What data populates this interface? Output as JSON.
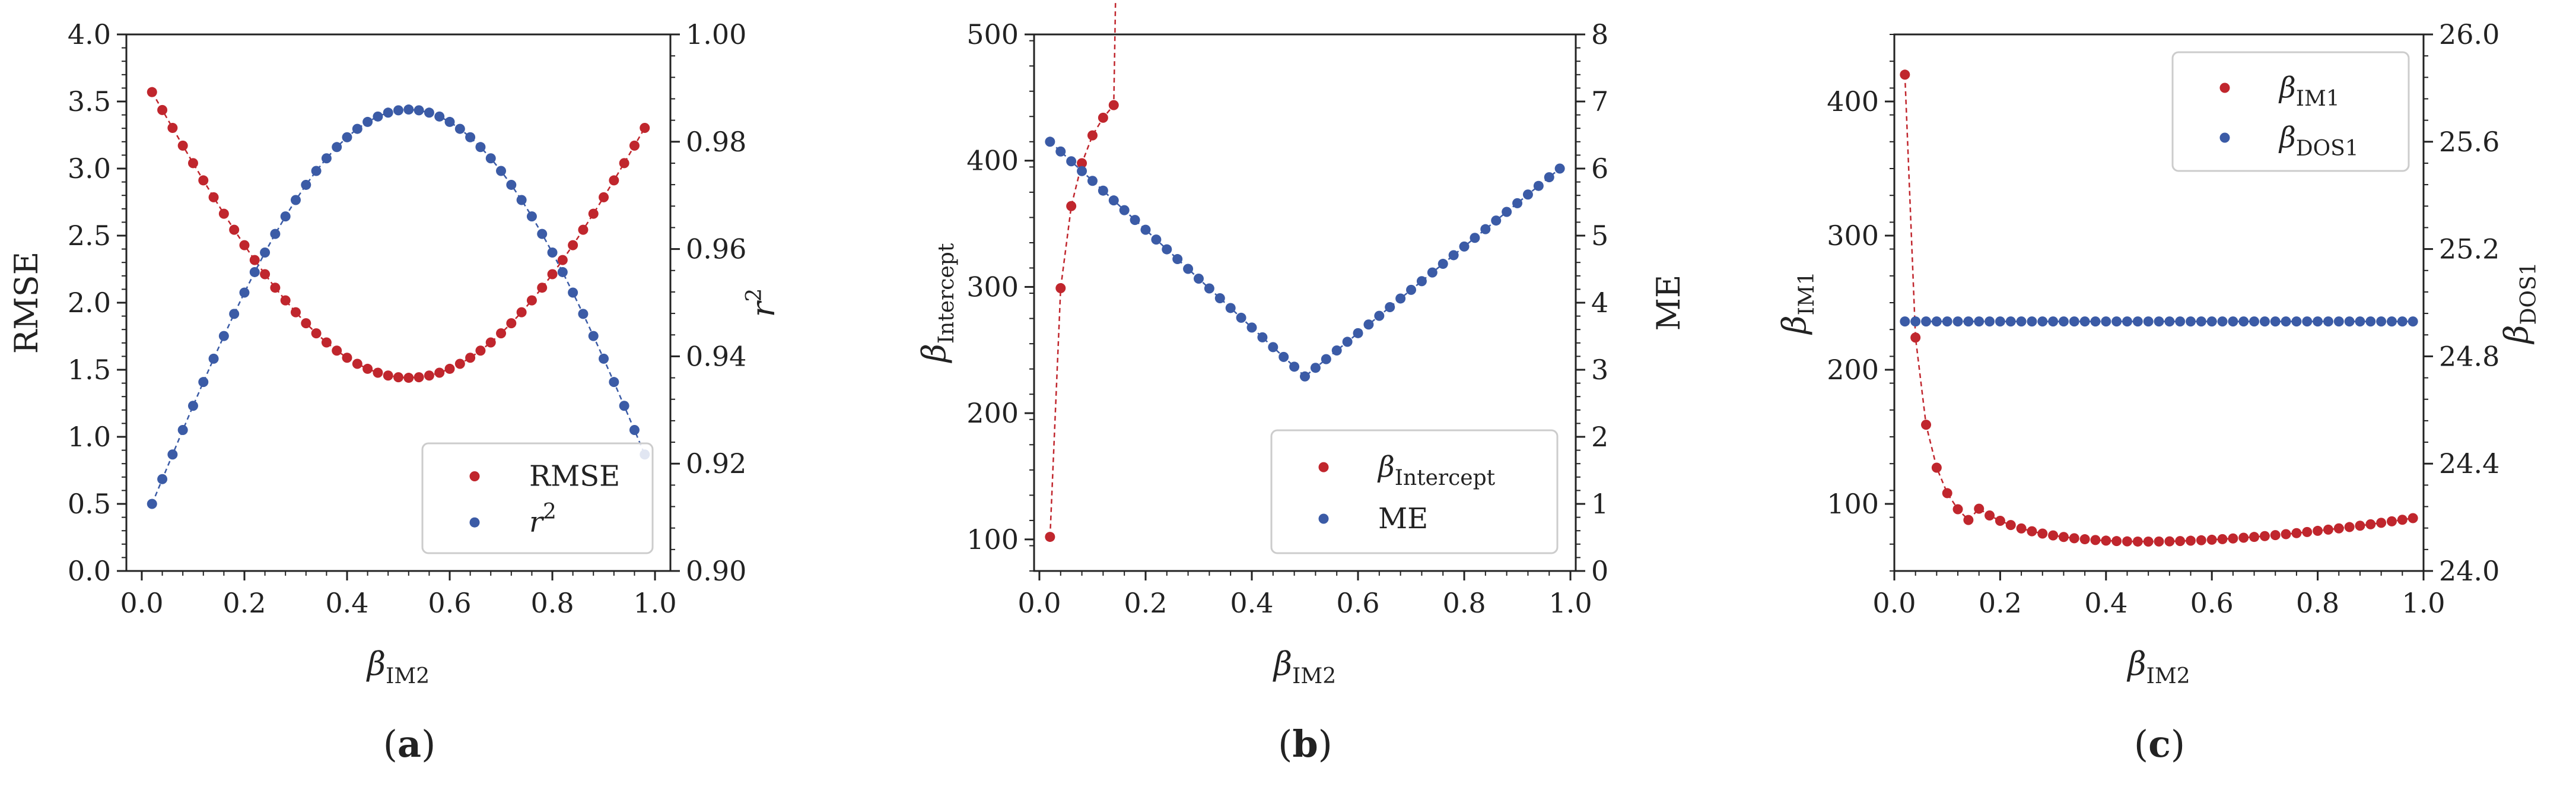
{
  "colors": {
    "red": "#c0262d",
    "blue": "#3b5ba6",
    "axis": "#222222",
    "legend_border": "#cccccc"
  },
  "chart_data": [
    {
      "type": "scatter",
      "panel_label": "a",
      "title": "",
      "xlabel": {
        "main": "β",
        "sub": "IM2"
      },
      "xlim": [
        -0.03,
        1.03
      ],
      "xticks": [
        0.0,
        0.2,
        0.4,
        0.6,
        0.8,
        1.0
      ],
      "xtick_labels": [
        "0.0",
        "0.2",
        "0.4",
        "0.6",
        "0.8",
        "1.0"
      ],
      "left_axis": {
        "label": {
          "main": "RMSE",
          "sub": ""
        },
        "ylim": [
          0.0,
          4.0
        ],
        "ticks": [
          0.0,
          0.5,
          1.0,
          1.5,
          2.0,
          2.5,
          3.0,
          3.5,
          4.0
        ],
        "tick_labels": [
          "0.0",
          "0.5",
          "1.0",
          "1.5",
          "2.0",
          "2.5",
          "3.0",
          "3.5",
          "4.0"
        ]
      },
      "right_axis": {
        "label": {
          "main": "r",
          "sup": "2"
        },
        "ylim": [
          0.9,
          1.0
        ],
        "ticks": [
          0.9,
          0.92,
          0.94,
          0.96,
          0.98,
          1.0
        ],
        "tick_labels": [
          "0.90",
          "0.92",
          "0.94",
          "0.96",
          "0.98",
          "1.00"
        ]
      },
      "legend": {
        "position": "lower-right",
        "entries": [
          {
            "label": "RMSE",
            "sup": "",
            "sub": "",
            "series": 0
          },
          {
            "label": "r",
            "sup": "2",
            "sub": "",
            "series": 1
          }
        ]
      },
      "series": [
        {
          "name": "RMSE",
          "axis": "left",
          "color": "red",
          "formula": {
            "kind": "cosine",
            "lo": 1.44,
            "hi": 3.57,
            "x0": 0.52,
            "x1": 0.02
          }
        },
        {
          "name": "r²",
          "axis": "right",
          "color": "blue",
          "formula": {
            "kind": "sine",
            "lo": 0.9125,
            "hi": 0.986,
            "x0": 0.52,
            "x1": 0.02
          }
        }
      ]
    },
    {
      "type": "scatter",
      "panel_label": "b",
      "title": "",
      "xlabel": {
        "main": "β",
        "sub": "IM2"
      },
      "xlim": [
        -0.01,
        1.01
      ],
      "xticks": [
        0.0,
        0.2,
        0.4,
        0.6,
        0.8,
        1.0
      ],
      "xtick_labels": [
        "0.0",
        "0.2",
        "0.4",
        "0.6",
        "0.8",
        "1.0"
      ],
      "left_axis": {
        "label": {
          "main": "β",
          "sub": "Intercept"
        },
        "ylim": [
          75,
          500
        ],
        "ticks": [
          100,
          200,
          300,
          400,
          500
        ],
        "tick_labels": [
          "100",
          "200",
          "300",
          "400",
          "500"
        ]
      },
      "right_axis": {
        "label": {
          "main": "ME",
          "sub": ""
        },
        "ylim": [
          0,
          8
        ],
        "ticks": [
          0,
          1,
          2,
          3,
          4,
          5,
          6,
          7,
          8
        ],
        "tick_labels": [
          "0",
          "1",
          "2",
          "3",
          "4",
          "5",
          "6",
          "7",
          "8"
        ]
      },
      "legend": {
        "position": "lower-right",
        "entries": [
          {
            "label": "β",
            "sup": "",
            "sub": "Intercept",
            "series": 0
          },
          {
            "label": "ME",
            "sup": "",
            "sub": "",
            "series": 1
          }
        ]
      },
      "series": [
        {
          "name": "β Intercept",
          "axis": "left",
          "color": "red",
          "values_at_start": [
            102,
            299,
            364,
            398,
            420,
            434,
            444
          ],
          "formula": {
            "kind": "saturating",
            "asymptote": 489.0,
            "scale": 3.8
          }
        },
        {
          "name": "ME",
          "axis": "right",
          "color": "blue",
          "formula": {
            "kind": "vee",
            "left_val": 6.4,
            "min_val": 2.9,
            "right_val": 6.0,
            "x_min": 0.5
          }
        }
      ]
    },
    {
      "type": "scatter",
      "panel_label": "c",
      "title": "",
      "xlabel": {
        "main": "β",
        "sub": "IM2"
      },
      "xlim": [
        0.0,
        1.0
      ],
      "xticks": [
        0.0,
        0.2,
        0.4,
        0.6,
        0.8,
        1.0
      ],
      "xtick_labels": [
        "0.0",
        "0.2",
        "0.4",
        "0.6",
        "0.8",
        "1.0"
      ],
      "left_axis": {
        "label": {
          "main": "β",
          "sub": "IM1"
        },
        "ylim": [
          50,
          450
        ],
        "ticks": [
          100,
          200,
          300,
          400
        ],
        "tick_labels": [
          "100",
          "200",
          "300",
          "400"
        ]
      },
      "right_axis": {
        "label": {
          "main": "β",
          "sub": "DOS1"
        },
        "ylim": [
          24.0,
          26.0
        ],
        "ticks": [
          24.0,
          24.4,
          24.8,
          25.2,
          25.6,
          26.0
        ],
        "tick_labels": [
          "24.0",
          "24.4",
          "24.8",
          "25.2",
          "25.6",
          "26.0"
        ]
      },
      "legend": {
        "position": "upper-right",
        "entries": [
          {
            "label": "β",
            "sup": "",
            "sub": "IM1",
            "series": 0
          },
          {
            "label": "β",
            "sup": "",
            "sub": "DOS1",
            "series": 1
          }
        ]
      },
      "series": [
        {
          "name": "β IM1",
          "axis": "left",
          "color": "red",
          "values_at_start": [
            420,
            224,
            159,
            127,
            108,
            96,
            88
          ],
          "formula": {
            "kind": "sum",
            "a": 7.6,
            "b": 48.0,
            "c": 3.0
          }
        },
        {
          "name": "β DOS1",
          "axis": "right",
          "color": "blue",
          "formula": {
            "kind": "constant",
            "value": 24.93
          }
        }
      ]
    }
  ]
}
